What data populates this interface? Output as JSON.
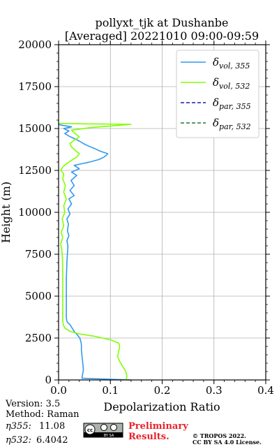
{
  "chart_data": {
    "type": "line",
    "title_line1": "pollyxt_tjk at Dushanbe",
    "title_line2": "[Averaged] 20221010 09:00-09:59",
    "xlabel": "Depolarization Ratio",
    "ylabel": "Height (m)",
    "xlim": [
      0,
      0.4
    ],
    "ylim": [
      0,
      20000
    ],
    "x_ticks": [
      "0.0",
      "0.1",
      "0.2",
      "0.3",
      "0.4"
    ],
    "y_ticks": [
      "0",
      "2500",
      "5000",
      "7500",
      "10000",
      "12500",
      "15000",
      "17500",
      "20000"
    ],
    "grid": true,
    "legend_position": "top-right",
    "legend": [
      {
        "symbol": "δ",
        "sub": "vol, 355",
        "color": "#3399ee",
        "dash": false
      },
      {
        "symbol": "δ",
        "sub": "vol, 532",
        "color": "#80ff00",
        "dash": false
      },
      {
        "symbol": "δ",
        "sub": "par, 355",
        "color": "#1a1ab0",
        "dash": true
      },
      {
        "symbol": "δ",
        "sub": "par, 532",
        "color": "#1a7a3a",
        "dash": true
      }
    ],
    "series": [
      {
        "name": "δvol,355",
        "color": "#3399ee",
        "points": [
          [
            0.14,
            0
          ],
          [
            0.045,
            100
          ],
          [
            0.046,
            300
          ],
          [
            0.048,
            600
          ],
          [
            0.047,
            900
          ],
          [
            0.046,
            1200
          ],
          [
            0.045,
            1500
          ],
          [
            0.044,
            1800
          ],
          [
            0.044,
            2100
          ],
          [
            0.043,
            2300
          ],
          [
            0.041,
            2500
          ],
          [
            0.036,
            2700
          ],
          [
            0.03,
            2900
          ],
          [
            0.026,
            3100
          ],
          [
            0.022,
            3300
          ],
          [
            0.018,
            3400
          ],
          [
            0.016,
            3500
          ],
          [
            0.015,
            3700
          ],
          [
            0.015,
            4200
          ],
          [
            0.015,
            5000
          ],
          [
            0.015,
            6000
          ],
          [
            0.016,
            7000
          ],
          [
            0.017,
            7500
          ],
          [
            0.018,
            8000
          ],
          [
            0.016,
            8300
          ],
          [
            0.02,
            8600
          ],
          [
            0.017,
            8900
          ],
          [
            0.019,
            9300
          ],
          [
            0.016,
            9600
          ],
          [
            0.022,
            9900
          ],
          [
            0.018,
            10200
          ],
          [
            0.025,
            10500
          ],
          [
            0.02,
            10800
          ],
          [
            0.03,
            11000
          ],
          [
            0.022,
            11300
          ],
          [
            0.03,
            11600
          ],
          [
            0.024,
            11900
          ],
          [
            0.035,
            12200
          ],
          [
            0.025,
            12400
          ],
          [
            0.04,
            12600
          ],
          [
            0.03,
            12800
          ],
          [
            0.045,
            12900
          ],
          [
            0.06,
            13000
          ],
          [
            0.078,
            13150
          ],
          [
            0.088,
            13300
          ],
          [
            0.092,
            13400
          ],
          [
            0.095,
            13500
          ],
          [
            0.08,
            13650
          ],
          [
            0.07,
            13800
          ],
          [
            0.058,
            13950
          ],
          [
            0.048,
            14100
          ],
          [
            0.04,
            14250
          ],
          [
            0.03,
            14400
          ],
          [
            0.02,
            14550
          ],
          [
            0.012,
            14700
          ],
          [
            0.02,
            14850
          ],
          [
            0.01,
            15000
          ],
          [
            0.025,
            15100
          ],
          [
            0.005,
            15200
          ],
          [
            0.0,
            15250
          ]
        ]
      },
      {
        "name": "δvol,532",
        "color": "#80ff00",
        "points": [
          [
            0.13,
            0
          ],
          [
            0.132,
            200
          ],
          [
            0.13,
            500
          ],
          [
            0.124,
            800
          ],
          [
            0.118,
            1100
          ],
          [
            0.114,
            1400
          ],
          [
            0.116,
            1700
          ],
          [
            0.118,
            2000
          ],
          [
            0.116,
            2200
          ],
          [
            0.1,
            2400
          ],
          [
            0.07,
            2600
          ],
          [
            0.04,
            2750
          ],
          [
            0.022,
            2900
          ],
          [
            0.012,
            3100
          ],
          [
            0.009,
            3300
          ],
          [
            0.008,
            3500
          ],
          [
            0.008,
            4000
          ],
          [
            0.008,
            5000
          ],
          [
            0.008,
            6000
          ],
          [
            0.008,
            6800
          ],
          [
            0.007,
            7500
          ],
          [
            0.006,
            7800
          ],
          [
            0.004,
            8100
          ],
          [
            0.008,
            8500
          ],
          [
            0.005,
            8800
          ],
          [
            0.01,
            9200
          ],
          [
            0.007,
            9600
          ],
          [
            0.012,
            10000
          ],
          [
            0.01,
            10400
          ],
          [
            0.015,
            10800
          ],
          [
            0.01,
            11200
          ],
          [
            0.013,
            11600
          ],
          [
            0.008,
            12000
          ],
          [
            0.01,
            12300
          ],
          [
            0.004,
            12500
          ],
          [
            0.008,
            12700
          ],
          [
            0.015,
            12900
          ],
          [
            0.025,
            13100
          ],
          [
            0.035,
            13300
          ],
          [
            0.04,
            13500
          ],
          [
            0.032,
            13700
          ],
          [
            0.025,
            13900
          ],
          [
            0.022,
            14100
          ],
          [
            0.03,
            14300
          ],
          [
            0.04,
            14500
          ],
          [
            0.032,
            14700
          ],
          [
            0.025,
            14900
          ],
          [
            0.06,
            15050
          ],
          [
            0.1,
            15150
          ],
          [
            0.14,
            15250
          ],
          [
            0.05,
            15280
          ],
          [
            0.0,
            15300
          ]
        ]
      }
    ]
  },
  "footer": {
    "version": "Version: 3.5",
    "method": "Method: Raman",
    "eta355_label": "η355:",
    "eta355_value": "11.08",
    "eta532_label": "η532:",
    "eta532_value": "6.4042",
    "prelim_line1": "Preliminary",
    "prelim_line2": "Results.",
    "copyright_line1": "© TROPOS 2022.",
    "copyright_line2": "CC BY SA 4.0 License.",
    "license_badge": "BY SA"
  }
}
